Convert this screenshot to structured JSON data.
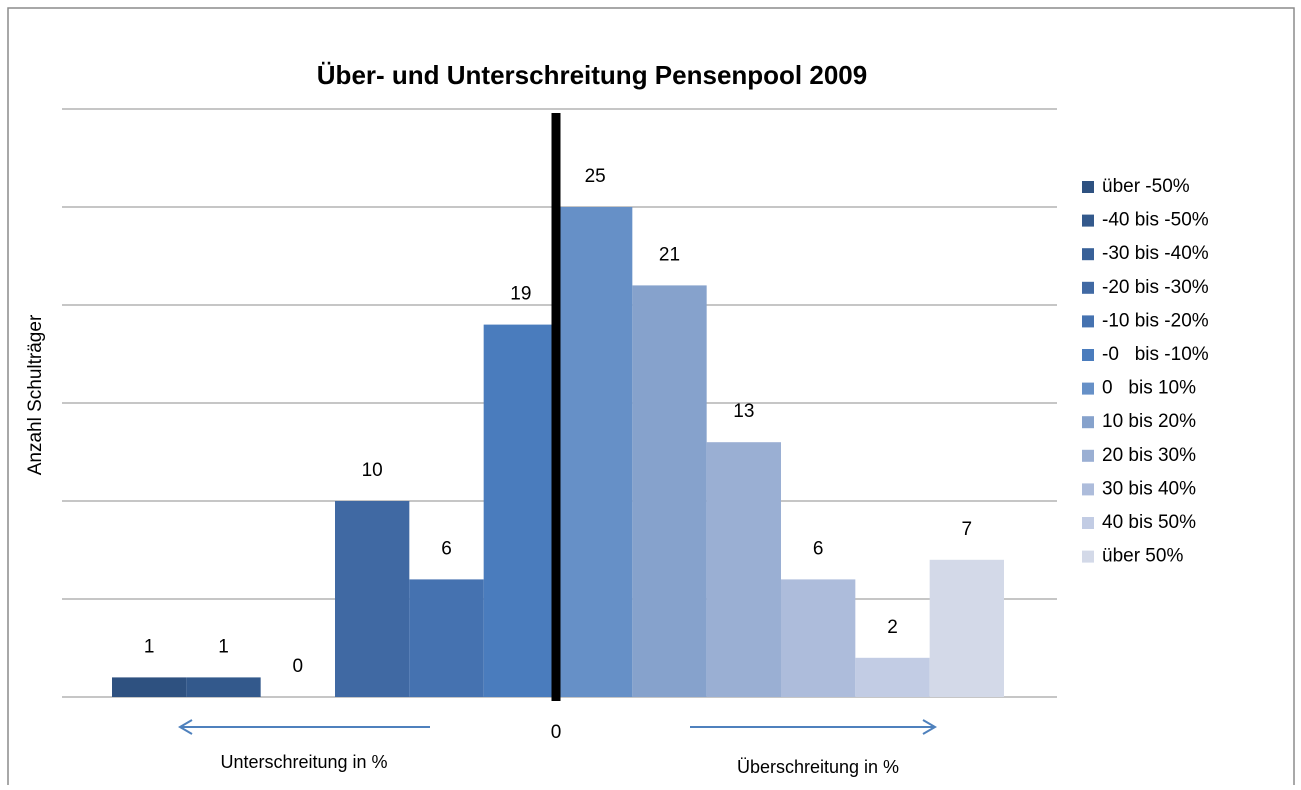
{
  "chart_data": {
    "type": "bar",
    "title": "Über- und Unterschreitung Pensenpool 2009",
    "y_label": "Anzahl Schulträger",
    "zero_label": "0",
    "annotations": [
      "Unterschreitung in %",
      "Überschreitung in %"
    ],
    "series": [
      {
        "name": "über -50%",
        "color": "#2e5180",
        "values": [
          1
        ]
      },
      {
        "name": "-40 bis -50%",
        "color": "#33598c",
        "values": [
          1
        ]
      },
      {
        "name": "-30 bis -40%",
        "color": "#386098",
        "values": [
          0
        ]
      },
      {
        "name": "-20 bis -30%",
        "color": "#4069a3",
        "values": [
          10
        ]
      },
      {
        "name": "-10 bis -20%",
        "color": "#4572b0",
        "values": [
          6
        ]
      },
      {
        "name": "-0   bis -10%",
        "color": "#4a7cbd",
        "values": [
          19
        ]
      },
      {
        "name": "0   bis 10%",
        "color": "#6690c7",
        "values": [
          25
        ]
      },
      {
        "name": "10 bis 20%",
        "color": "#86a2cc",
        "values": [
          21
        ]
      },
      {
        "name": "20 bis 30%",
        "color": "#9aafd3",
        "values": [
          13
        ]
      },
      {
        "name": "30 bis 40%",
        "color": "#adbcdb",
        "values": [
          6
        ]
      },
      {
        "name": "40 bis 50%",
        "color": "#c2cce4",
        "values": [
          2
        ]
      },
      {
        "name": "über 50%",
        "color": "#d3d9e8",
        "values": [
          7
        ]
      }
    ],
    "ylim": [
      0,
      30
    ],
    "yticks": [
      0,
      5,
      10,
      15,
      20,
      25,
      30
    ],
    "grid": true,
    "legend": "right"
  }
}
